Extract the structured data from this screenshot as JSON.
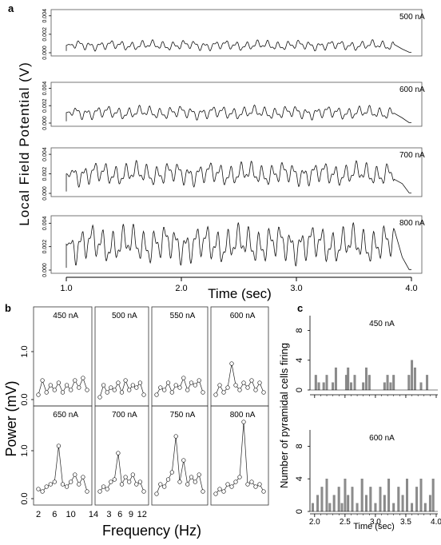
{
  "panels": {
    "a": "a",
    "b": "b",
    "c": "c"
  },
  "panel_a": {
    "ylabel": "Local Field Potential (V)",
    "xlabel": "Time (sec)",
    "x_ticks": [
      "1.0",
      "2.0",
      "3.0",
      "4.0"
    ],
    "y_ticks": [
      "0.000",
      "0.002",
      "0.004"
    ],
    "traces": [
      {
        "label": "500 nA",
        "mean": 0.0008,
        "amp": 0.0005
      },
      {
        "label": "600 nA",
        "mean": 0.0012,
        "amp": 0.0007
      },
      {
        "label": "700 nA",
        "mean": 0.002,
        "amp": 0.0011
      },
      {
        "label": "800 nA",
        "mean": 0.0022,
        "amp": 0.0015
      }
    ]
  },
  "panel_b": {
    "ylabel": "Power (mV)",
    "xlabel": "Frequency (Hz)",
    "y_ticks": [
      "0.0",
      "1.0"
    ],
    "x_ticks": [
      "2",
      "6",
      "10",
      "14"
    ],
    "x_ticks_inner": [
      "3",
      "6",
      "9",
      "12"
    ],
    "cells": [
      {
        "label": "450 nA",
        "peak": 0.45
      },
      {
        "label": "500 nA",
        "peak": 0.4
      },
      {
        "label": "550 nA",
        "peak": 0.45
      },
      {
        "label": "600 nA",
        "peak": 0.75
      },
      {
        "label": "650 nA",
        "peak": 1.1
      },
      {
        "label": "700 nA",
        "peak": 0.95
      },
      {
        "label": "750 nA",
        "peak": 1.3
      },
      {
        "label": "800 nA",
        "peak": 1.6
      }
    ]
  },
  "panel_c": {
    "ylabel": "Number of pyramidal cells firing",
    "xlabel": "Time (sec)",
    "x_ticks": [
      "2.0",
      "2.5",
      "3.0",
      "3.5",
      "4.0"
    ],
    "y_ticks": [
      "0",
      "4",
      "8"
    ],
    "plots": [
      {
        "label": "450 nA"
      },
      {
        "label": "600 nA"
      }
    ]
  },
  "chart_data": [
    {
      "type": "line",
      "title": "",
      "xlabel": "Time (sec)",
      "ylabel": "Local Field Potential (V)",
      "xlim": [
        1.0,
        4.0
      ],
      "ylim": [
        0.0,
        0.004
      ],
      "series": [
        {
          "name": "500 nA",
          "x": [
            1.0,
            1.1,
            1.2,
            1.3,
            1.4,
            1.5,
            1.6,
            1.7,
            1.8,
            1.9,
            2.0,
            2.1,
            2.2,
            2.3,
            2.4,
            2.5,
            2.6,
            2.7,
            2.8,
            2.9,
            3.0,
            3.1,
            3.2,
            3.3,
            3.4,
            3.5,
            3.6,
            3.7,
            3.8,
            3.9
          ],
          "y": [
            0.0002,
            0.0012,
            0.0008,
            0.0014,
            0.0007,
            0.0013,
            0.0006,
            0.0011,
            0.0008,
            0.0009,
            0.0007,
            0.001,
            0.0009,
            0.0012,
            0.0008,
            0.0014,
            0.0009,
            0.0011,
            0.0012,
            0.0008,
            0.0016,
            0.0009,
            0.0014,
            0.0008,
            0.0013,
            0.0012,
            0.0009,
            0.001,
            0.0011,
            0.0011
          ]
        },
        {
          "name": "600 nA",
          "x": [
            1.0,
            1.1,
            1.2,
            1.3,
            1.4,
            1.5,
            1.6,
            1.7,
            1.8,
            1.9,
            2.0,
            2.1,
            2.2,
            2.3,
            2.4,
            2.5,
            2.6,
            2.7,
            2.8,
            2.9,
            3.0,
            3.1,
            3.2,
            3.3,
            3.4,
            3.5,
            3.6,
            3.7,
            3.8,
            3.9
          ],
          "y": [
            0.0004,
            0.0016,
            0.0012,
            0.0018,
            0.001,
            0.0017,
            0.0011,
            0.0016,
            0.0012,
            0.0015,
            0.0011,
            0.0016,
            0.0013,
            0.0017,
            0.0012,
            0.0018,
            0.0013,
            0.0016,
            0.0014,
            0.0018,
            0.0012,
            0.0017,
            0.0014,
            0.0019,
            0.0013,
            0.0017,
            0.0015,
            0.0018,
            0.0014,
            0.0012
          ]
        },
        {
          "name": "700 nA",
          "x": [
            1.0,
            1.1,
            1.2,
            1.3,
            1.4,
            1.5,
            1.6,
            1.7,
            1.8,
            1.9,
            2.0,
            2.1,
            2.2,
            2.3,
            2.4,
            2.5,
            2.6,
            2.7,
            2.8,
            2.9,
            3.0,
            3.1,
            3.2,
            3.3,
            3.4,
            3.5,
            3.6,
            3.7,
            3.8,
            3.9
          ],
          "y": [
            0.0005,
            0.0028,
            0.0019,
            0.0027,
            0.0016,
            0.0029,
            0.0017,
            0.0026,
            0.0019,
            0.0025,
            0.0018,
            0.0028,
            0.0018,
            0.0026,
            0.002,
            0.0029,
            0.0018,
            0.0027,
            0.0021,
            0.0028,
            0.0019,
            0.003,
            0.002,
            0.0028,
            0.0021,
            0.0031,
            0.002,
            0.0033,
            0.0022,
            0.0026
          ]
        },
        {
          "name": "800 nA",
          "x": [
            1.0,
            1.1,
            1.2,
            1.3,
            1.4,
            1.5,
            1.6,
            1.7,
            1.8,
            1.9,
            2.0,
            2.1,
            2.2,
            2.3,
            2.4,
            2.5,
            2.6,
            2.7,
            2.8,
            2.9,
            3.0,
            3.1,
            3.2,
            3.3,
            3.4,
            3.5,
            3.6,
            3.7,
            3.8,
            3.9
          ],
          "y": [
            0.0005,
            0.0027,
            0.0015,
            0.0028,
            0.0017,
            0.0031,
            0.0016,
            0.004,
            0.0012,
            0.0033,
            0.0013,
            0.0032,
            0.0015,
            0.0034,
            0.0014,
            0.0032,
            0.0016,
            0.003,
            0.0015,
            0.0031,
            0.0016,
            0.0033,
            0.0017,
            0.0035,
            0.0016,
            0.0036,
            0.0017,
            0.0033,
            0.002,
            0.0027
          ]
        }
      ]
    },
    {
      "type": "line",
      "title": "",
      "xlabel": "Frequency (Hz)",
      "ylabel": "Power (mV)",
      "xlim": [
        2,
        14
      ],
      "ylim": [
        0.0,
        1.7
      ],
      "series": [
        {
          "name": "450 nA",
          "x": [
            2,
            3,
            4,
            5,
            6,
            7,
            8,
            9,
            10,
            11,
            12,
            13,
            14
          ],
          "y": [
            0.1,
            0.4,
            0.15,
            0.3,
            0.2,
            0.35,
            0.15,
            0.3,
            0.2,
            0.4,
            0.25,
            0.45,
            0.2
          ]
        },
        {
          "name": "500 nA",
          "x": [
            2,
            3,
            4,
            5,
            6,
            7,
            8,
            9,
            10,
            11,
            12,
            13,
            14
          ],
          "y": [
            0.05,
            0.3,
            0.15,
            0.25,
            0.2,
            0.35,
            0.15,
            0.4,
            0.2,
            0.3,
            0.25,
            0.35,
            0.1
          ]
        },
        {
          "name": "550 nA",
          "x": [
            2,
            3,
            4,
            5,
            6,
            7,
            8,
            9,
            10,
            11,
            12,
            13,
            14
          ],
          "y": [
            0.1,
            0.25,
            0.2,
            0.35,
            0.15,
            0.3,
            0.25,
            0.45,
            0.2,
            0.35,
            0.3,
            0.4,
            0.15
          ]
        },
        {
          "name": "600 nA",
          "x": [
            2,
            3,
            4,
            5,
            6,
            7,
            8,
            9,
            10,
            11,
            12,
            13,
            14
          ],
          "y": [
            0.1,
            0.3,
            0.15,
            0.25,
            0.75,
            0.3,
            0.2,
            0.35,
            0.25,
            0.4,
            0.2,
            0.35,
            0.15
          ]
        },
        {
          "name": "650 nA",
          "x": [
            2,
            3,
            4,
            5,
            6,
            7,
            8,
            9,
            10,
            11,
            12,
            13,
            14
          ],
          "y": [
            0.2,
            0.15,
            0.25,
            0.3,
            0.35,
            1.1,
            0.3,
            0.25,
            0.35,
            0.5,
            0.3,
            0.45,
            0.15
          ]
        },
        {
          "name": "700 nA",
          "x": [
            2,
            3,
            4,
            5,
            6,
            7,
            8,
            9,
            10,
            11,
            12,
            13,
            14
          ],
          "y": [
            0.15,
            0.25,
            0.2,
            0.35,
            0.4,
            0.95,
            0.3,
            0.45,
            0.35,
            0.5,
            0.3,
            0.35,
            0.15
          ]
        },
        {
          "name": "750 nA",
          "x": [
            2,
            3,
            4,
            5,
            6,
            7,
            8,
            9,
            10,
            11,
            12,
            13,
            14
          ],
          "y": [
            0.1,
            0.3,
            0.25,
            0.4,
            0.55,
            1.3,
            0.35,
            0.8,
            0.3,
            0.45,
            0.35,
            0.5,
            0.15
          ]
        },
        {
          "name": "800 nA",
          "x": [
            2,
            3,
            4,
            5,
            6,
            7,
            8,
            9,
            10,
            11,
            12,
            13,
            14
          ],
          "y": [
            0.1,
            0.2,
            0.15,
            0.3,
            0.25,
            0.35,
            0.45,
            1.6,
            0.3,
            0.35,
            0.25,
            0.3,
            0.15
          ]
        }
      ]
    },
    {
      "type": "bar",
      "title": "",
      "xlabel": "Time (sec)",
      "ylabel": "Number of pyramidal cells firing",
      "xlim": [
        1.95,
        4.0
      ],
      "ylim": [
        0,
        10
      ],
      "series": [
        {
          "name": "450 nA",
          "x": [
            2.02,
            2.07,
            2.15,
            2.2,
            2.3,
            2.35,
            2.52,
            2.55,
            2.6,
            2.66,
            2.8,
            2.85,
            2.9,
            3.15,
            3.2,
            3.25,
            3.3,
            3.55,
            3.6,
            3.65,
            3.75,
            3.85
          ],
          "y": [
            2,
            1,
            1,
            2,
            1,
            3,
            2,
            3,
            1,
            2,
            1,
            3,
            2,
            1,
            2,
            1,
            2,
            2,
            4,
            3,
            1,
            2
          ]
        },
        {
          "name": "600 nA",
          "x": [
            1.97,
            2.05,
            2.12,
            2.2,
            2.25,
            2.32,
            2.4,
            2.45,
            2.5,
            2.55,
            2.62,
            2.7,
            2.78,
            2.85,
            2.92,
            3.0,
            3.08,
            3.15,
            3.22,
            3.3,
            3.38,
            3.45,
            3.52,
            3.6,
            3.68,
            3.75,
            3.82,
            3.9,
            3.95
          ],
          "y": [
            1,
            2,
            3,
            4,
            1,
            2,
            3,
            1,
            4,
            2,
            3,
            1,
            4,
            2,
            3,
            1,
            3,
            2,
            4,
            1,
            3,
            2,
            4,
            1,
            3,
            4,
            1,
            2,
            4
          ]
        }
      ]
    }
  ]
}
